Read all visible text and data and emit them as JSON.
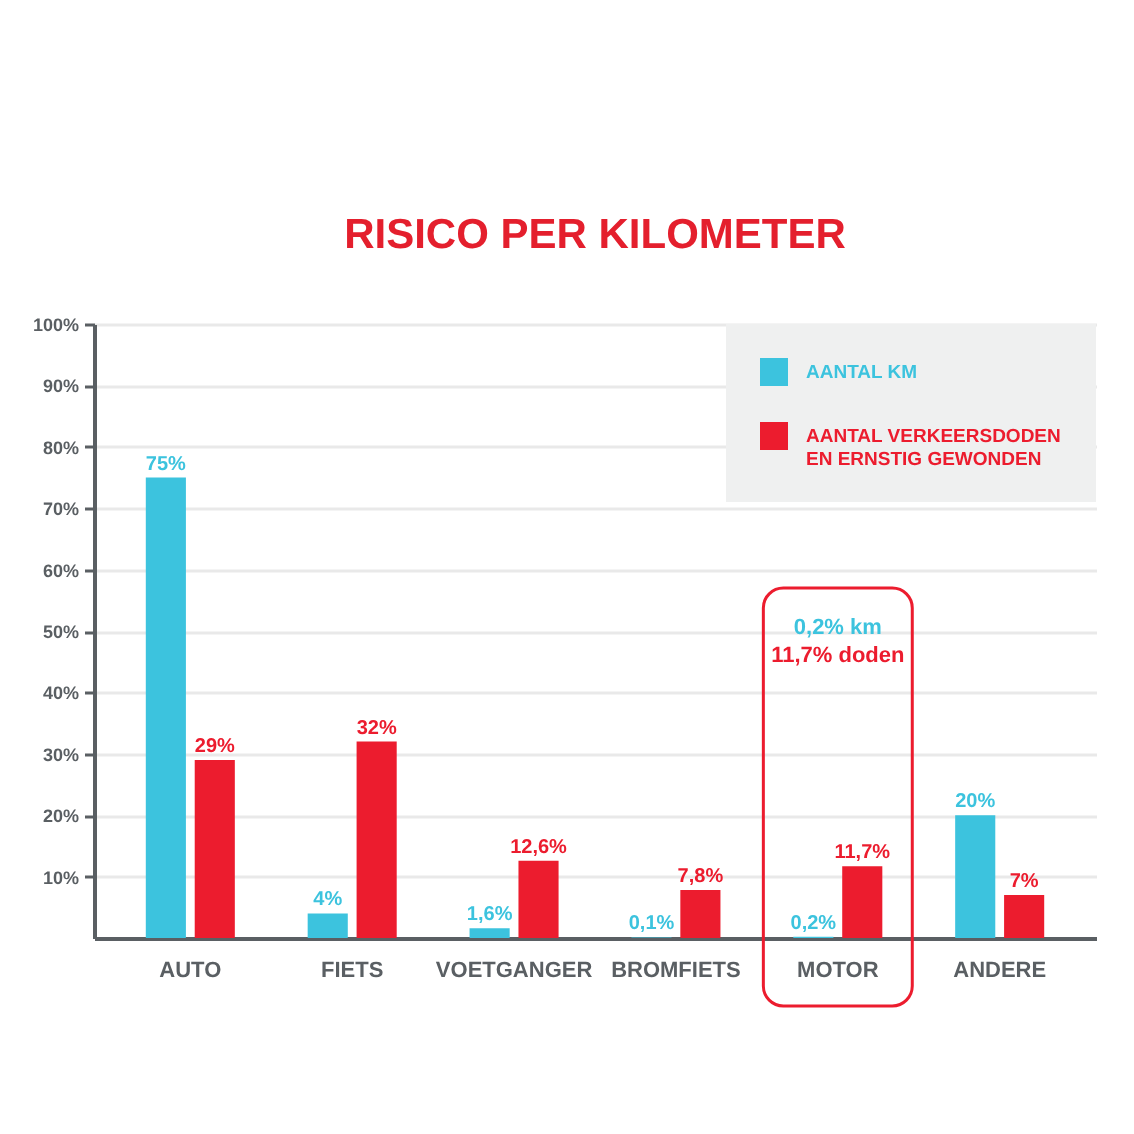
{
  "chart_data": {
    "type": "bar",
    "title": "RISICO PER KILOMETER",
    "categories": [
      "AUTO",
      "FIETS",
      "VOETGANGER",
      "BROMFIETS",
      "MOTOR",
      "ANDERE"
    ],
    "series": [
      {
        "name": "AANTAL KM",
        "color": "#3cc3de",
        "values": [
          75,
          4,
          1.6,
          0.1,
          0.2,
          20
        ],
        "value_labels": [
          "75%",
          "4%",
          "1,6%",
          "0,1%",
          "0,2%",
          "20%"
        ]
      },
      {
        "name": "AANTAL VERKEERSDODEN EN ERNSTIG GEWONDEN",
        "color": "#ec1c2e",
        "values": [
          29,
          32,
          12.6,
          7.8,
          11.7,
          7
        ],
        "value_labels": [
          "29%",
          "32%",
          "12,6%",
          "7,8%",
          "11,7%",
          "7%"
        ]
      }
    ],
    "ylim": [
      0,
      100
    ],
    "yticks": [
      {
        "value": 10,
        "label": "10%"
      },
      {
        "value": 20,
        "label": "20%"
      },
      {
        "value": 30,
        "label": "30%"
      },
      {
        "value": 40,
        "label": "40%"
      },
      {
        "value": 50,
        "label": "50%"
      },
      {
        "value": 60,
        "label": "60%"
      },
      {
        "value": 70,
        "label": "70%"
      },
      {
        "value": 80,
        "label": "80%"
      },
      {
        "value": 90,
        "label": "90%"
      },
      {
        "value": 100,
        "label": "100%"
      }
    ],
    "grid": "y",
    "legend": "top right",
    "annotations": [
      "0,2% km",
      "11,7% doden"
    ]
  }
}
